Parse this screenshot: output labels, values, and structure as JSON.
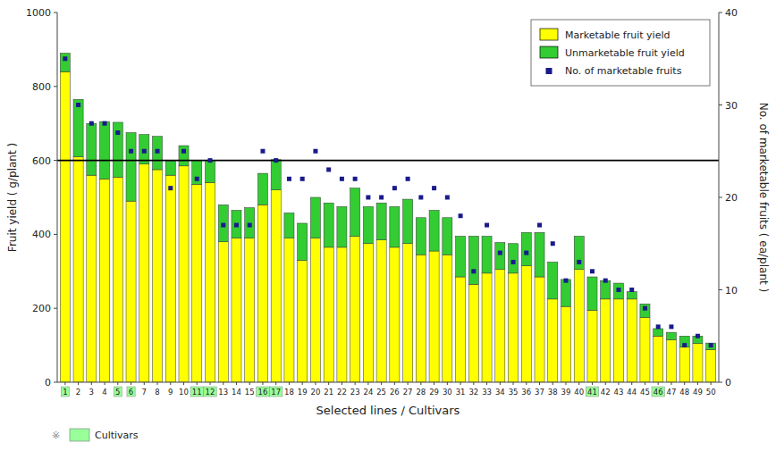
{
  "chart_data": {
    "type": "bar",
    "stacked": true,
    "grid": false,
    "legend": "upper right",
    "xlabel": "Selected lines / Cultivars",
    "ylabel": "Fruit yield ( g/plant )",
    "y2label": "No. of marketable fruits ( ea/plant )",
    "categories": [
      "1",
      "2",
      "3",
      "4",
      "5",
      "6",
      "7",
      "8",
      "9",
      "10",
      "11",
      "12",
      "13",
      "14",
      "15",
      "16",
      "17",
      "18",
      "19",
      "20",
      "21",
      "22",
      "23",
      "24",
      "25",
      "26",
      "27",
      "28",
      "29",
      "30",
      "31",
      "32",
      "33",
      "34",
      "35",
      "36",
      "37",
      "38",
      "39",
      "40",
      "41",
      "42",
      "43",
      "44",
      "45",
      "46",
      "47",
      "48",
      "49",
      "50"
    ],
    "ylim": [
      0,
      1000
    ],
    "yticks": [
      0,
      200,
      400,
      600,
      800,
      1000
    ],
    "y2lim": [
      0,
      40
    ],
    "y2ticks": [
      0,
      10,
      20,
      30,
      40
    ],
    "series": [
      {
        "name": "Marketable fruit yield",
        "color": "#FFFF00",
        "values": [
          840,
          610,
          560,
          550,
          555,
          490,
          590,
          575,
          560,
          585,
          535,
          540,
          380,
          390,
          390,
          480,
          520,
          390,
          330,
          390,
          365,
          365,
          395,
          375,
          385,
          365,
          375,
          345,
          355,
          345,
          285,
          265,
          295,
          305,
          295,
          315,
          285,
          225,
          205,
          305,
          195,
          225,
          225,
          225,
          175,
          125,
          115,
          95,
          105,
          88
        ]
      },
      {
        "name": "Unmarketable fruit yield",
        "color": "#33CC33",
        "values": [
          50,
          155,
          140,
          155,
          148,
          185,
          80,
          90,
          38,
          55,
          65,
          60,
          100,
          75,
          82,
          85,
          82,
          68,
          100,
          110,
          120,
          110,
          130,
          100,
          100,
          110,
          120,
          100,
          110,
          100,
          110,
          130,
          100,
          73,
          80,
          90,
          120,
          100,
          73,
          90,
          90,
          50,
          43,
          20,
          37,
          20,
          20,
          30,
          20,
          18
        ]
      },
      {
        "name": "No. of marketable fruits",
        "type": "scatter",
        "marker": "square",
        "axis": "y2",
        "color": "#1A1A8C",
        "values": [
          35,
          30,
          28,
          28,
          27,
          25,
          25,
          25,
          21,
          25,
          22,
          24,
          17,
          17,
          17,
          25,
          24,
          22,
          22,
          25,
          23,
          22,
          22,
          20,
          20,
          21,
          22,
          20,
          21,
          20,
          18,
          12,
          17,
          14,
          13,
          14,
          17,
          15,
          11,
          13,
          12,
          11,
          10,
          10,
          8,
          6,
          6,
          4,
          5,
          4
        ]
      }
    ],
    "annotations": [
      {
        "type": "hline",
        "y": 600,
        "color": "#000000"
      }
    ],
    "highlight": {
      "indices": [
        0,
        4,
        5,
        10,
        11,
        15,
        16,
        40,
        45
      ],
      "color": "#99FF99",
      "symbol": "※",
      "label": "Cultivars"
    }
  }
}
